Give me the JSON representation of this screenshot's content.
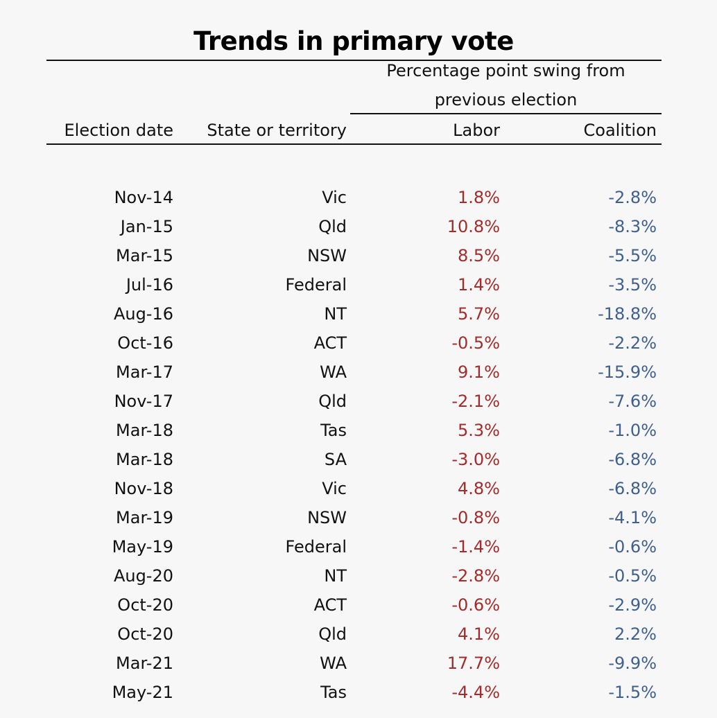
{
  "chart_data": {
    "type": "table",
    "title": "Trends in primary vote",
    "group_header": "Percentage point swing from previous election",
    "group_header_lines": [
      "Percentage point swing from",
      "previous election"
    ],
    "columns": [
      "Election date",
      "State or territory",
      "Labor",
      "Coalition"
    ],
    "colors": {
      "labor": "#a52a2a",
      "coalition": "#3f5f8f",
      "text": "#111111"
    },
    "rows": [
      {
        "date": "Nov-14",
        "state": "Vic",
        "labor": "1.8%",
        "coalition": "-2.8%"
      },
      {
        "date": "Jan-15",
        "state": "Qld",
        "labor": "10.8%",
        "coalition": "-8.3%"
      },
      {
        "date": "Mar-15",
        "state": "NSW",
        "labor": "8.5%",
        "coalition": "-5.5%"
      },
      {
        "date": "Jul-16",
        "state": "Federal",
        "labor": "1.4%",
        "coalition": "-3.5%"
      },
      {
        "date": "Aug-16",
        "state": "NT",
        "labor": "5.7%",
        "coalition": "-18.8%"
      },
      {
        "date": "Oct-16",
        "state": "ACT",
        "labor": "-0.5%",
        "coalition": "-2.2%"
      },
      {
        "date": "Mar-17",
        "state": "WA",
        "labor": "9.1%",
        "coalition": "-15.9%"
      },
      {
        "date": "Nov-17",
        "state": "Qld",
        "labor": "-2.1%",
        "coalition": "-7.6%"
      },
      {
        "date": "Mar-18",
        "state": "Tas",
        "labor": "5.3%",
        "coalition": "-1.0%"
      },
      {
        "date": "Mar-18",
        "state": "SA",
        "labor": "-3.0%",
        "coalition": "-6.8%"
      },
      {
        "date": "Nov-18",
        "state": "Vic",
        "labor": "4.8%",
        "coalition": "-6.8%"
      },
      {
        "date": "Mar-19",
        "state": "NSW",
        "labor": "-0.8%",
        "coalition": "-4.1%"
      },
      {
        "date": "May-19",
        "state": "Federal",
        "labor": "-1.4%",
        "coalition": "-0.6%"
      },
      {
        "date": "Aug-20",
        "state": "NT",
        "labor": "-2.8%",
        "coalition": "-0.5%"
      },
      {
        "date": "Oct-20",
        "state": "ACT",
        "labor": "-0.6%",
        "coalition": "-2.9%"
      },
      {
        "date": "Oct-20",
        "state": "Qld",
        "labor": "4.1%",
        "coalition": "2.2%"
      },
      {
        "date": "Mar-21",
        "state": "WA",
        "labor": "17.7%",
        "coalition": "-9.9%"
      },
      {
        "date": "May-21",
        "state": "Tas",
        "labor": "-4.4%",
        "coalition": "-1.5%"
      }
    ]
  }
}
